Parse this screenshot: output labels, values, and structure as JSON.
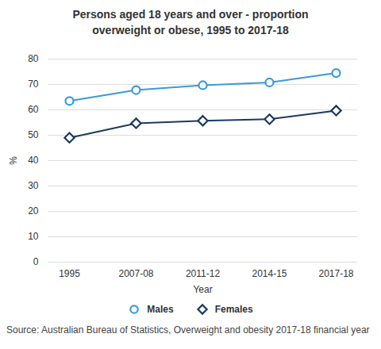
{
  "chart_data": {
    "type": "line",
    "title": "Persons aged 18 years and over - proportion overweight or obese, 1995 to 2017-18",
    "x_label": "Year",
    "y_label": "%",
    "categories": [
      "1995",
      "2007-08",
      "2011-12",
      "2014-15",
      "2017-18"
    ],
    "series": [
      {
        "name": "Males",
        "color": "#3a9ad9",
        "marker": "circle",
        "values": [
          63.5,
          67.8,
          69.7,
          70.8,
          74.5
        ]
      },
      {
        "name": "Females",
        "color": "#1b3a5e",
        "marker": "diamond",
        "values": [
          49.0,
          54.7,
          55.7,
          56.3,
          59.7
        ]
      }
    ],
    "ylim": [
      0,
      80
    ],
    "yticks": [
      0,
      10,
      20,
      30,
      40,
      50,
      60,
      70,
      80
    ],
    "grid": true,
    "legend": "bottom",
    "source": "Source: Australian Bureau of Statistics, Overweight and obesity 2017-18 financial year"
  }
}
